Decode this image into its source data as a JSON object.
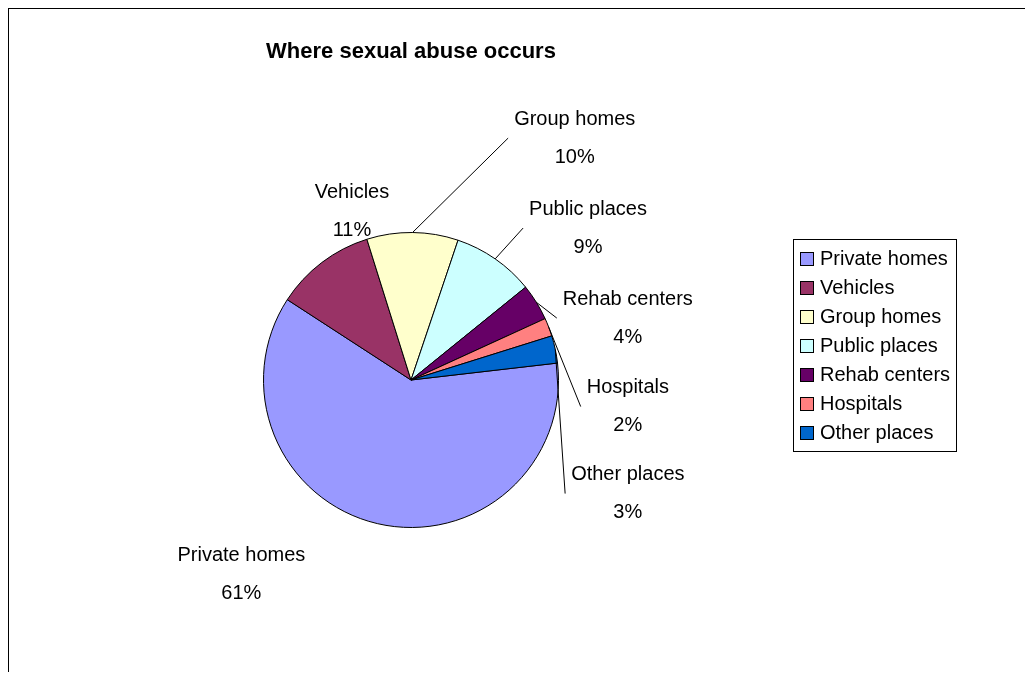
{
  "chart_data": {
    "type": "pie",
    "title": "Where sexual abuse occurs",
    "categories": [
      "Private homes",
      "Vehicles",
      "Group homes",
      "Public places",
      "Rehab centers",
      "Hospitals",
      "Other places"
    ],
    "values": [
      61,
      11,
      10,
      9,
      4,
      2,
      3
    ],
    "value_labels": [
      "61%",
      "11%",
      "10%",
      "9%",
      "4%",
      "2%",
      "3%"
    ],
    "colors": [
      "#9999ff",
      "#993366",
      "#ffffcc",
      "#ccffff",
      "#660066",
      "#ff8080",
      "#0066cc"
    ],
    "legend": "right"
  }
}
